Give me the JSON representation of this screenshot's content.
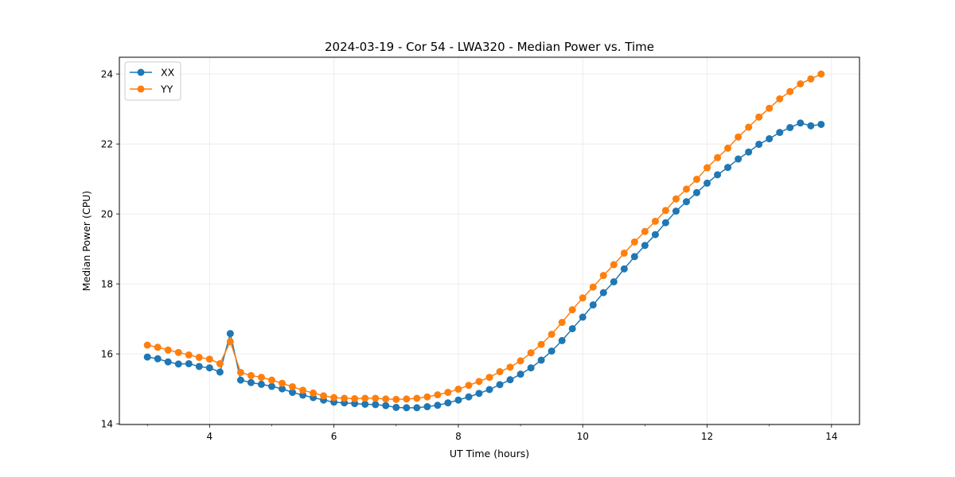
{
  "chart_data": {
    "type": "line",
    "title": "2024-03-19 - Cor 54 - LWA320 - Median Power vs. Time",
    "xlabel": "UT Time (hours)",
    "ylabel": "Median Power (CPU)",
    "xlim": [
      2.55,
      14.45
    ],
    "ylim": [
      13.98,
      24.48
    ],
    "xticks": [
      4,
      6,
      8,
      10,
      12,
      14
    ],
    "yticks": [
      14,
      16,
      18,
      20,
      22,
      24
    ],
    "grid": true,
    "legend_position": "upper-left",
    "x": [
      3.0,
      3.167,
      3.333,
      3.5,
      3.667,
      3.833,
      4.0,
      4.167,
      4.333,
      4.5,
      4.667,
      4.833,
      5.0,
      5.167,
      5.333,
      5.5,
      5.667,
      5.833,
      6.0,
      6.167,
      6.333,
      6.5,
      6.667,
      6.833,
      7.0,
      7.167,
      7.333,
      7.5,
      7.667,
      7.833,
      8.0,
      8.167,
      8.333,
      8.5,
      8.667,
      8.833,
      9.0,
      9.167,
      9.333,
      9.5,
      9.667,
      9.833,
      10.0,
      10.167,
      10.333,
      10.5,
      10.667,
      10.833,
      11.0,
      11.167,
      11.333,
      11.5,
      11.667,
      11.833,
      12.0,
      12.167,
      12.333,
      12.5,
      12.667,
      12.833,
      13.0,
      13.167,
      13.333,
      13.5,
      13.667,
      13.833
    ],
    "series": [
      {
        "name": "XX",
        "color": "#1f77b4",
        "values": [
          15.91,
          15.86,
          15.77,
          15.71,
          15.72,
          15.64,
          15.6,
          15.48,
          16.58,
          15.25,
          15.18,
          15.13,
          15.07,
          15.0,
          14.9,
          14.82,
          14.75,
          14.68,
          14.62,
          14.6,
          14.58,
          14.56,
          14.55,
          14.52,
          14.47,
          14.46,
          14.46,
          14.49,
          14.53,
          14.6,
          14.68,
          14.77,
          14.87,
          14.98,
          15.12,
          15.26,
          15.42,
          15.6,
          15.82,
          16.08,
          16.38,
          16.72,
          17.05,
          17.4,
          17.75,
          18.06,
          18.43,
          18.78,
          19.1,
          19.41,
          19.75,
          20.08,
          20.35,
          20.61,
          20.88,
          21.12,
          21.33,
          21.57,
          21.77,
          21.99,
          22.15,
          22.33,
          22.47,
          22.6,
          22.52,
          22.56
        ]
      },
      {
        "name": "YY",
        "color": "#ff7f0e",
        "values": [
          16.25,
          16.19,
          16.11,
          16.04,
          15.97,
          15.9,
          15.85,
          15.72,
          16.35,
          15.47,
          15.38,
          15.33,
          15.25,
          15.16,
          15.06,
          14.96,
          14.88,
          14.8,
          14.75,
          14.73,
          14.72,
          14.73,
          14.73,
          14.71,
          14.7,
          14.71,
          14.73,
          14.77,
          14.83,
          14.9,
          14.99,
          15.1,
          15.21,
          15.33,
          15.49,
          15.62,
          15.8,
          16.03,
          16.27,
          16.56,
          16.9,
          17.26,
          17.6,
          17.91,
          18.24,
          18.55,
          18.88,
          19.2,
          19.5,
          19.79,
          20.1,
          20.43,
          20.71,
          20.99,
          21.32,
          21.61,
          21.88,
          22.2,
          22.48,
          22.77,
          23.02,
          23.29,
          23.5,
          23.72,
          23.86,
          24.0
        ]
      }
    ]
  }
}
